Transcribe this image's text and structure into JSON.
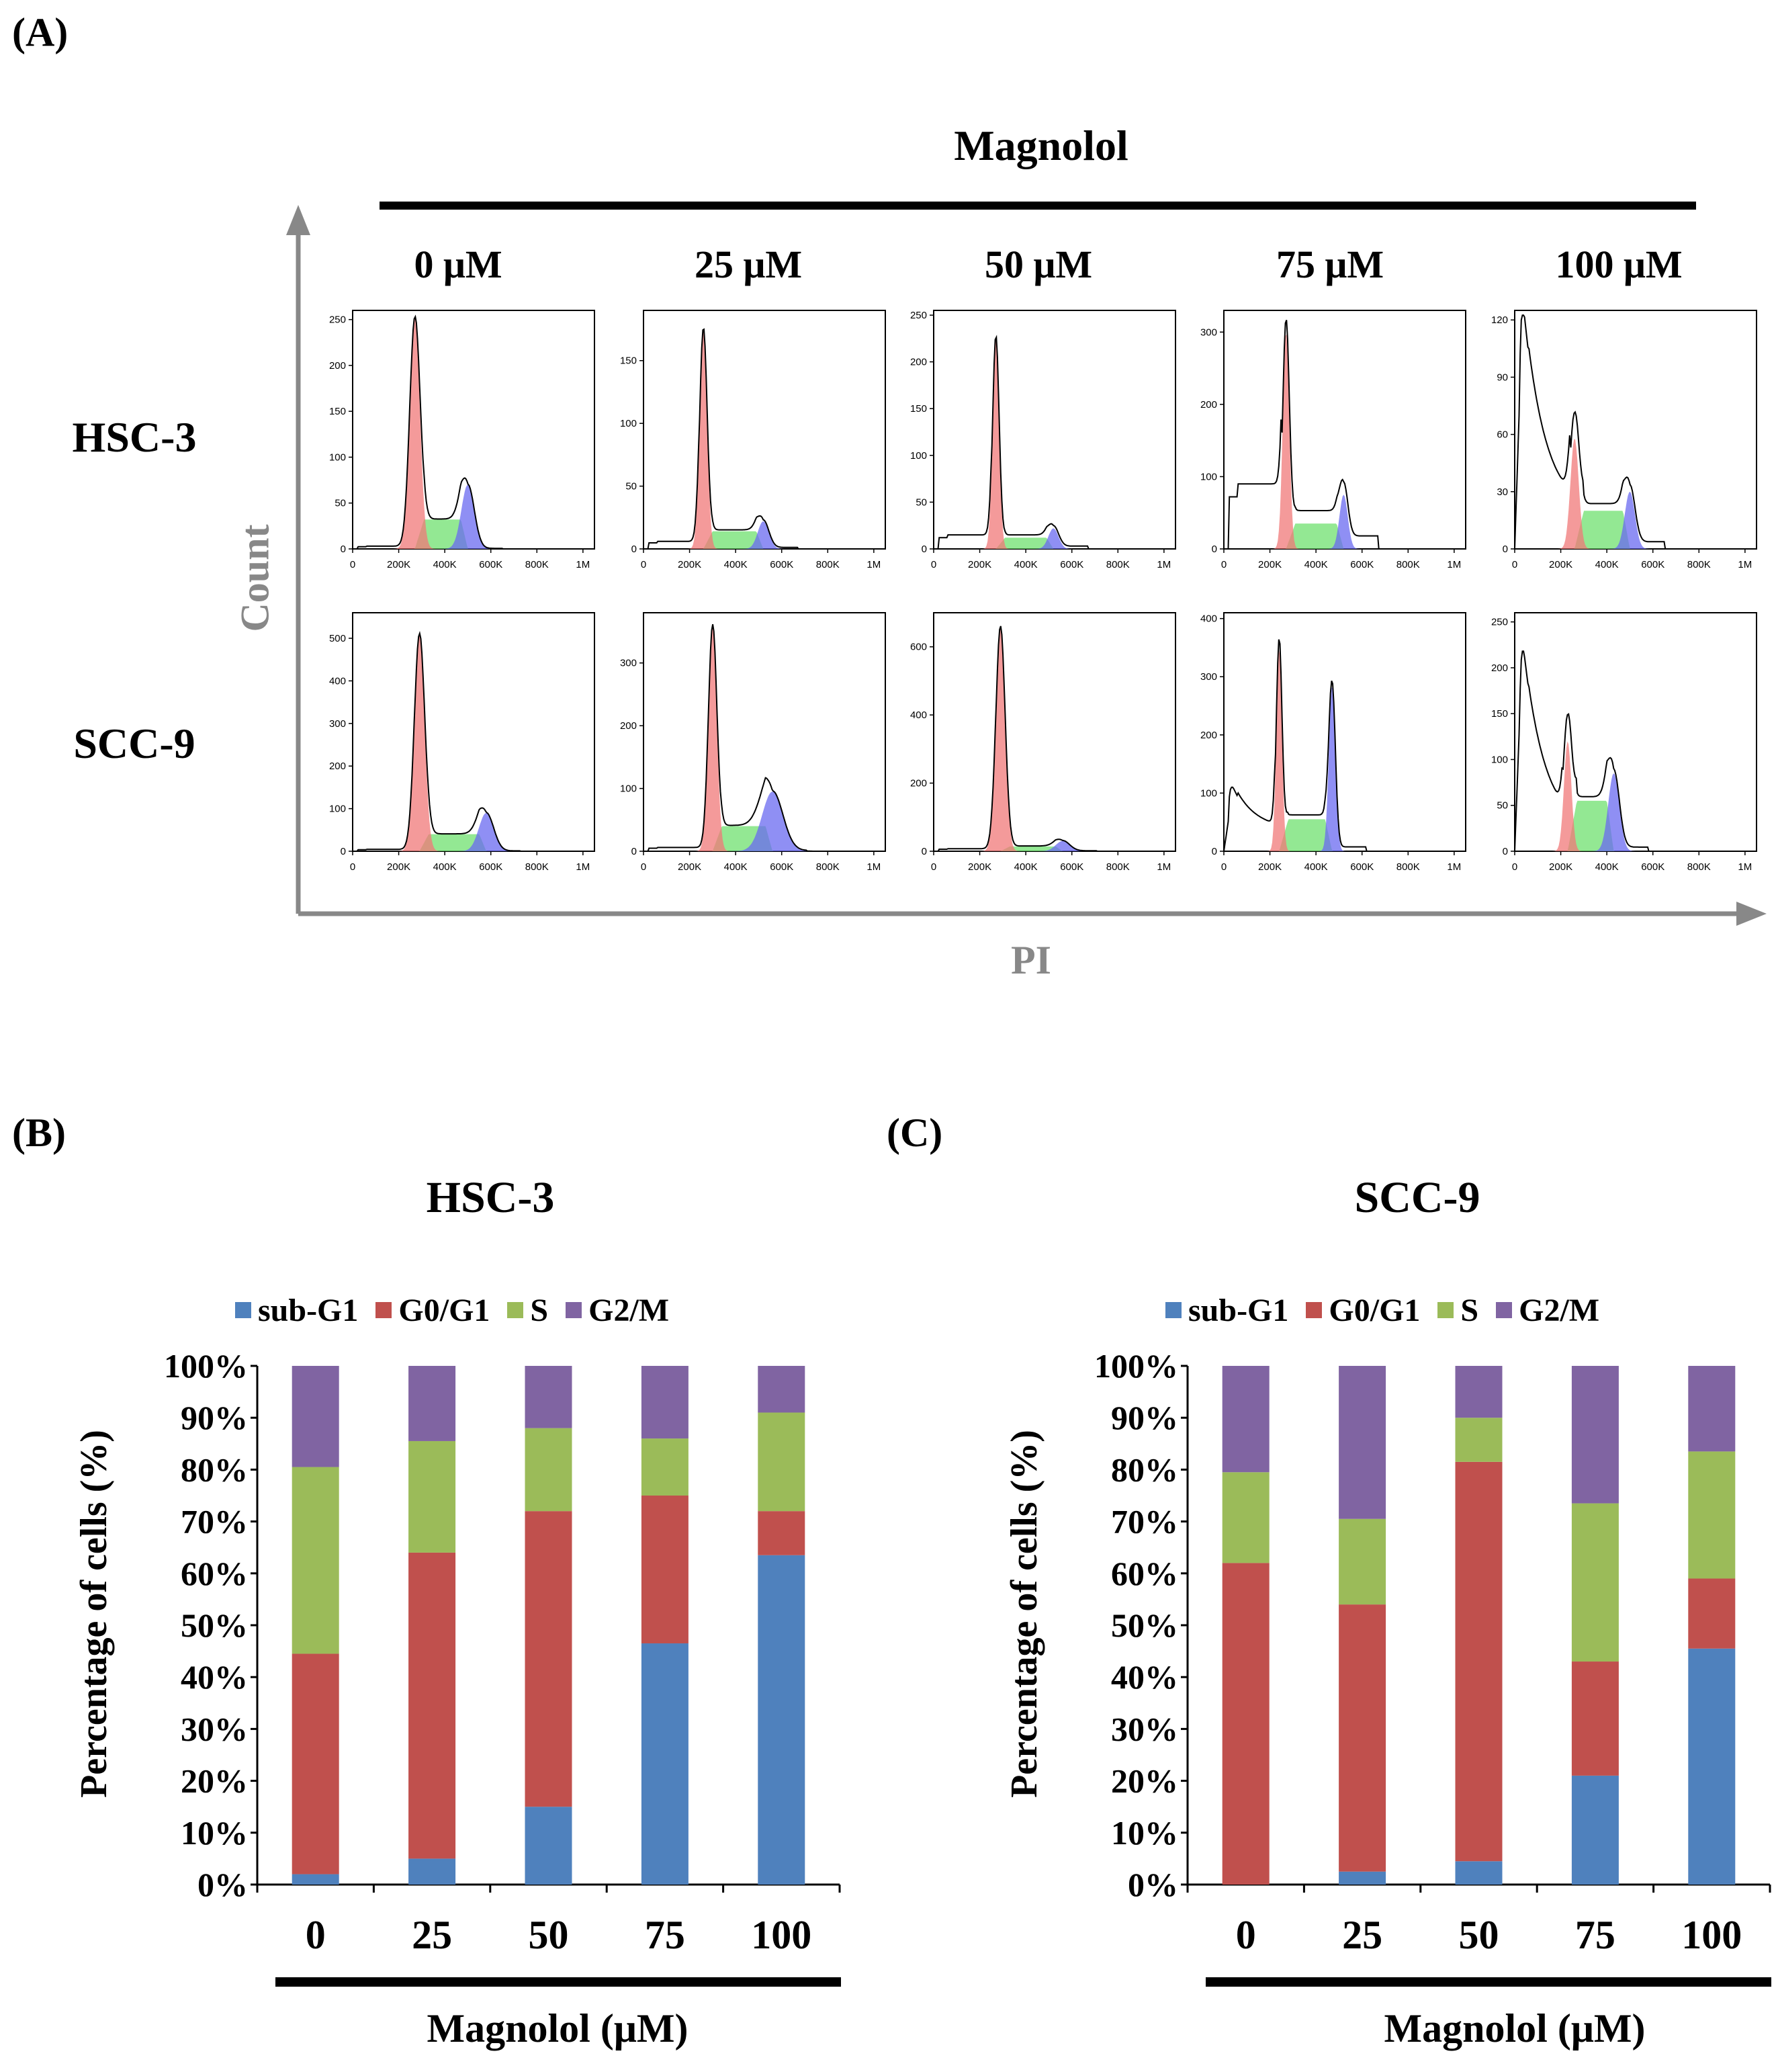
{
  "panel_labels": {
    "a": "(A)",
    "b": "(B)",
    "c": "(C)"
  },
  "panel_a": {
    "treatment_title": "Magnolol",
    "concentrations": [
      "0 μM",
      "25 μM",
      "50 μM",
      "75 μM",
      "100 μM"
    ],
    "cell_lines": [
      "HSC-3",
      "SCC-9"
    ],
    "y_axis_label": "Count",
    "x_axis_label": "PI",
    "x_ticks": [
      "0",
      "200K",
      "400K",
      "600K",
      "800K",
      "1M"
    ]
  },
  "colors": {
    "sub_g1": "#4f81bd",
    "g0_g1": "#c0504d",
    "s": "#9bbb59",
    "g2_m": "#8064a2",
    "flow_g1_fill": "#f07878",
    "flow_s_fill": "#6fe06f",
    "flow_g2_fill": "#6a6af0",
    "axis_gray": "#888888"
  },
  "chart_data": [
    {
      "type": "histogram",
      "title": "Flow cytometry cell cycle histograms",
      "xlabel": "PI",
      "ylabel": "Count",
      "columns": [
        "0 μM",
        "25 μM",
        "50 μM",
        "75 μM",
        "100 μM"
      ],
      "rows": [
        "HSC-3",
        "SCC-9"
      ],
      "x_ticks": [
        "0",
        "200K",
        "400K",
        "600K",
        "800K",
        "1M"
      ],
      "y_ticks": [
        [
          [
            "0",
            "50",
            "100",
            "150",
            "200",
            "250"
          ],
          [
            "0",
            "50",
            "100",
            "150"
          ],
          [
            "0",
            "50",
            "100",
            "150",
            "200",
            "250"
          ],
          [
            "0",
            "100",
            "200",
            "300"
          ],
          [
            "0",
            "30",
            "60",
            "90",
            "120"
          ]
        ],
        [
          [
            "0",
            "100",
            "200",
            "300",
            "400",
            "500"
          ],
          [
            "0",
            "100",
            "200",
            "300"
          ],
          [
            "0",
            "200",
            "400",
            "600"
          ],
          [
            "0",
            "100",
            "200",
            "300",
            "400"
          ],
          [
            "0",
            "50",
            "100",
            "150",
            "200",
            "250"
          ]
        ]
      ],
      "y_max": [
        [
          260,
          190,
          255,
          330,
          125
        ],
        [
          560,
          380,
          700,
          410,
          260
        ]
      ],
      "peaks": [
        [
          {
            "g1_pos": 270000,
            "g1_h": 252,
            "g1_w": 22000,
            "s_h": 32,
            "g2_pos": 500000,
            "g2_h": 70,
            "g2_w": 28000,
            "sub": 4,
            "decay": 0
          },
          {
            "g1_pos": 260000,
            "g1_h": 175,
            "g1_w": 16000,
            "s_h": 14,
            "g2_pos": 520000,
            "g2_h": 22,
            "g2_w": 24000,
            "sub": 8,
            "decay": 0
          },
          {
            "g1_pos": 270000,
            "g1_h": 225,
            "g1_w": 14000,
            "s_h": 12,
            "g2_pos": 520000,
            "g2_h": 22,
            "g2_w": 22000,
            "sub": 20,
            "decay": 0
          },
          {
            "g1_pos": 270000,
            "g1_h": 300,
            "g1_w": 14000,
            "s_h": 35,
            "g2_pos": 520000,
            "g2_h": 75,
            "g2_w": 18000,
            "sub": 120,
            "decay": 0
          },
          {
            "g1_pos": 260000,
            "g1_h": 58,
            "g1_w": 18000,
            "s_h": 20,
            "g2_pos": 500000,
            "g2_h": 30,
            "g2_w": 22000,
            "sub": 25,
            "decay": 110
          }
        ],
        [
          {
            "g1_pos": 290000,
            "g1_h": 510,
            "g1_w": 22000,
            "s_h": 40,
            "g2_pos": 580000,
            "g2_h": 90,
            "g2_w": 32000,
            "sub": 6,
            "decay": 0
          },
          {
            "g1_pos": 300000,
            "g1_h": 360,
            "g1_w": 18000,
            "s_h": 40,
            "g2_pos": 560000,
            "g2_h": 95,
            "g2_w": 45000,
            "sub": 8,
            "decay": 0
          },
          {
            "g1_pos": 290000,
            "g1_h": 660,
            "g1_w": 20000,
            "s_h": 14,
            "g2_pos": 560000,
            "g2_h": 30,
            "g2_w": 30000,
            "sub": 10,
            "decay": 0
          },
          {
            "g1_pos": 240000,
            "g1_h": 350,
            "g1_w": 12000,
            "s_h": 55,
            "g2_pos": 470000,
            "g2_h": 285,
            "g2_w": 14000,
            "sub": 50,
            "decay": 80
          },
          {
            "g1_pos": 230000,
            "g1_h": 120,
            "g1_w": 16000,
            "s_h": 55,
            "g2_pos": 430000,
            "g2_h": 85,
            "g2_w": 24000,
            "sub": 30,
            "decay": 200
          }
        ]
      ]
    },
    {
      "type": "bar",
      "stacked": true,
      "title": "HSC-3",
      "legend": [
        "sub-G1",
        "G0/G1",
        "S",
        "G2/M"
      ],
      "legend_position": "top",
      "categories": [
        "0",
        "25",
        "50",
        "75",
        "100"
      ],
      "xlabel": "Magnolol (μM)",
      "ylabel": "Percentage of cells (%)",
      "y_ticks": [
        "0%",
        "10%",
        "20%",
        "30%",
        "40%",
        "50%",
        "60%",
        "70%",
        "80%",
        "90%",
        "100%"
      ],
      "ylim": [
        0,
        100
      ],
      "series": [
        {
          "name": "sub-G1",
          "values": [
            2,
            5,
            15,
            46.5,
            63.5
          ]
        },
        {
          "name": "G0/G1",
          "values": [
            42.5,
            59,
            57,
            28.5,
            8.5
          ]
        },
        {
          "name": "S",
          "values": [
            36,
            21.5,
            16,
            11,
            19
          ]
        },
        {
          "name": "G2/M",
          "values": [
            19.5,
            14.5,
            12,
            14,
            9
          ]
        }
      ]
    },
    {
      "type": "bar",
      "stacked": true,
      "title": "SCC-9",
      "legend": [
        "sub-G1",
        "G0/G1",
        "S",
        "G2/M"
      ],
      "legend_position": "top",
      "categories": [
        "0",
        "25",
        "50",
        "75",
        "100"
      ],
      "xlabel": "Magnolol (μM)",
      "ylabel": "Percentage of cells (%)",
      "y_ticks": [
        "0%",
        "10%",
        "20%",
        "30%",
        "40%",
        "50%",
        "60%",
        "70%",
        "80%",
        "90%",
        "100%"
      ],
      "ylim": [
        0,
        100
      ],
      "series": [
        {
          "name": "sub-G1",
          "values": [
            0,
            2.5,
            4.5,
            21,
            45.5
          ]
        },
        {
          "name": "G0/G1",
          "values": [
            62,
            51.5,
            77,
            22,
            13.5
          ]
        },
        {
          "name": "S",
          "values": [
            17.5,
            16.5,
            8.5,
            30.5,
            24.5
          ]
        },
        {
          "name": "G2/M",
          "values": [
            20.5,
            29.5,
            10,
            26.5,
            16.5
          ]
        }
      ]
    }
  ]
}
